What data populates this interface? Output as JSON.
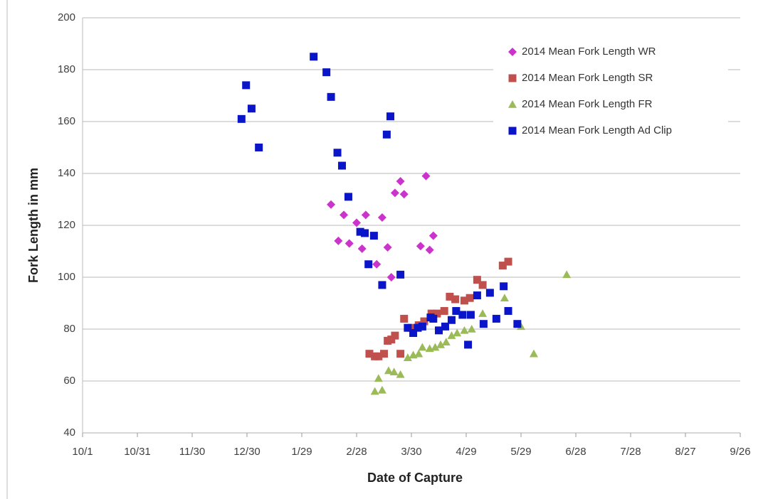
{
  "chart_data": {
    "type": "scatter",
    "x_label": "Date of Capture",
    "y_label": "Fork Length in mm",
    "xlim": [
      0,
      360
    ],
    "ylim": [
      40,
      200
    ],
    "xticks": [
      {
        "value": 0,
        "label": "10/1"
      },
      {
        "value": 30,
        "label": "10/31"
      },
      {
        "value": 60,
        "label": "11/30"
      },
      {
        "value": 90,
        "label": "12/30"
      },
      {
        "value": 120,
        "label": "1/29"
      },
      {
        "value": 150,
        "label": "2/28"
      },
      {
        "value": 180,
        "label": "3/30"
      },
      {
        "value": 210,
        "label": "4/29"
      },
      {
        "value": 240,
        "label": "5/29"
      },
      {
        "value": 270,
        "label": "6/28"
      },
      {
        "value": 300,
        "label": "7/28"
      },
      {
        "value": 330,
        "label": "8/27"
      },
      {
        "value": 360,
        "label": "9/26"
      }
    ],
    "yticks": [
      40,
      60,
      80,
      100,
      120,
      140,
      160,
      180,
      200
    ],
    "grid": true,
    "legend": "top-right",
    "series": [
      {
        "name": "2014 Mean Fork Length WR",
        "color": "#cc33cc",
        "marker": "diamond",
        "x": [
          136,
          140,
          143,
          146,
          150,
          153,
          155,
          161,
          164,
          167,
          169,
          171,
          174,
          176,
          185,
          188,
          190,
          192
        ],
        "values": [
          128,
          114,
          124,
          113,
          121,
          111,
          124,
          105,
          123,
          111.5,
          100,
          132.5,
          137,
          132,
          112,
          139,
          110.5,
          116
        ]
      },
      {
        "name": "2014 Mean Fork Length SR",
        "color": "#c0504d",
        "marker": "square",
        "x": [
          157,
          160,
          162,
          165,
          167,
          169,
          171,
          174,
          176,
          180,
          184,
          187,
          191,
          194,
          198,
          201,
          204,
          209,
          212,
          216,
          219,
          230,
          233
        ],
        "values": [
          70.5,
          69.5,
          69.5,
          70.5,
          75.5,
          76,
          77.5,
          70.5,
          84,
          80.5,
          81.5,
          83,
          86,
          86,
          87,
          92.5,
          91.5,
          91,
          92,
          99,
          97,
          104.5,
          106
        ]
      },
      {
        "name": "2014 Mean Fork Length FR",
        "color": "#9bbb59",
        "marker": "triangle",
        "x": [
          160,
          162,
          164,
          167.5,
          170.5,
          174,
          178,
          181,
          184,
          186,
          190,
          193,
          196,
          199,
          202,
          205,
          209,
          213,
          219,
          231,
          240,
          247,
          265
        ],
        "values": [
          56,
          61,
          56.5,
          64,
          63.5,
          62.5,
          69,
          70,
          70.5,
          73,
          72.5,
          73,
          74,
          75,
          77.5,
          78.5,
          79.5,
          80,
          86,
          92,
          81,
          70.5,
          101
        ]
      },
      {
        "name": "2014 Mean Fork Length Ad Clip",
        "color": "#0a14c8",
        "marker": "square",
        "x": [
          87,
          89.5,
          92.5,
          96.5,
          126.5,
          133.5,
          136,
          139.5,
          142,
          145.5,
          152,
          154.5,
          156.5,
          159.5,
          164,
          166.5,
          168.5,
          174,
          178,
          181,
          183.5,
          186,
          190.5,
          192,
          195,
          198.5,
          202,
          204.5,
          208,
          211,
          212.5,
          216,
          219.5,
          223,
          226.5,
          230.5,
          233,
          238
        ],
        "values": [
          161,
          174,
          165,
          150,
          185,
          179,
          169.5,
          148,
          143,
          131,
          117.5,
          117,
          105,
          116,
          97,
          155,
          162,
          101,
          80.5,
          78.5,
          80.5,
          81,
          84.5,
          84,
          79.5,
          81,
          83.5,
          87,
          85.5,
          74,
          85.5,
          93,
          82,
          94,
          84,
          96.5,
          87,
          82
        ]
      }
    ]
  }
}
